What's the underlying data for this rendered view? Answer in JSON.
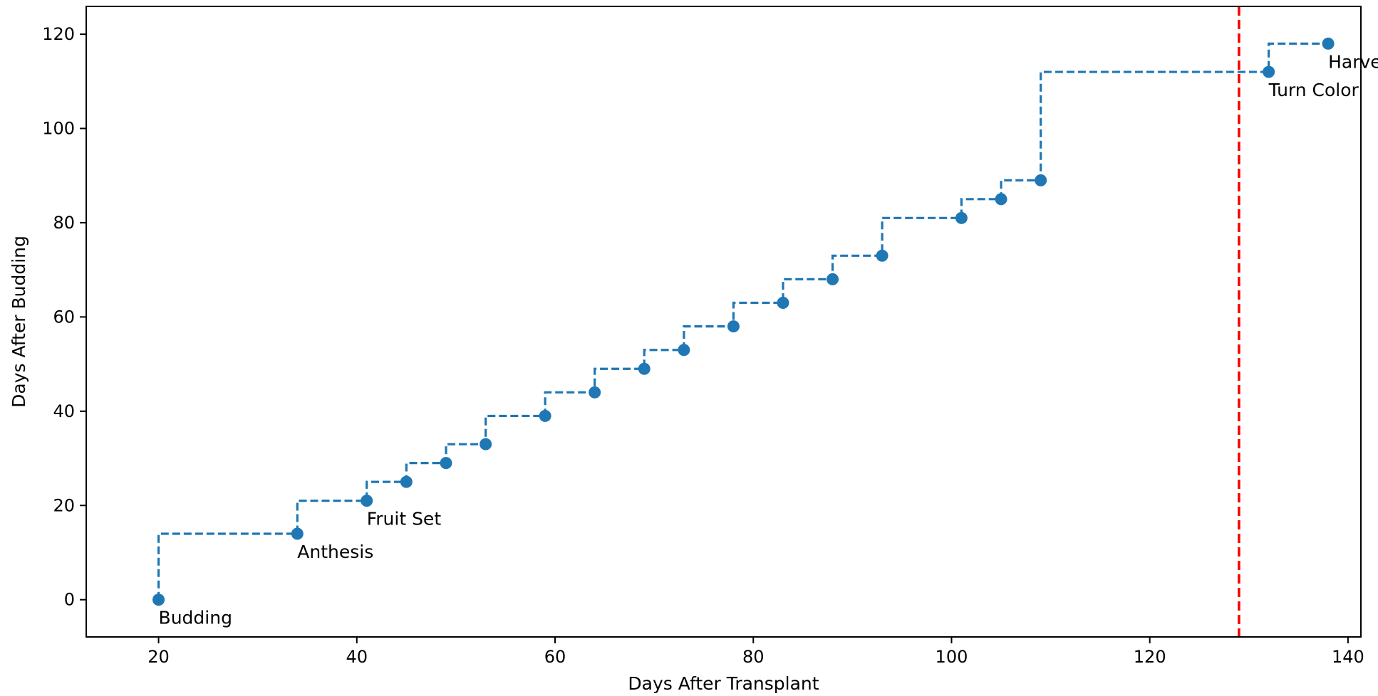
{
  "chart_data": {
    "type": "line",
    "title": "",
    "xlabel": "Days After Transplant",
    "ylabel": "Days After Budding",
    "xlim": [
      12.7,
      141.3
    ],
    "ylim": [
      -7.9,
      125.9
    ],
    "xticks": [
      20,
      40,
      60,
      80,
      100,
      120,
      140
    ],
    "yticks": [
      0,
      20,
      40,
      60,
      80,
      100,
      120
    ],
    "grid": false,
    "legend": null,
    "series": [
      {
        "style": "dashed step (post) with circle markers",
        "color": "#1f77b4",
        "x": [
          20,
          34,
          41,
          45,
          49,
          53,
          59,
          64,
          69,
          73,
          78,
          83,
          88,
          93,
          101,
          105,
          109,
          132,
          138
        ],
        "y": [
          0,
          14,
          21,
          25,
          29,
          33,
          39,
          44,
          49,
          53,
          58,
          63,
          68,
          73,
          81,
          85,
          89,
          112,
          118
        ]
      }
    ],
    "reference_lines": [
      {
        "orientation": "vertical",
        "x": 129,
        "style": "dashed",
        "color": "#ff0000"
      }
    ],
    "annotations": [
      {
        "text": "Budding",
        "x": 20,
        "y": 0
      },
      {
        "text": "Anthesis",
        "x": 34,
        "y": 14
      },
      {
        "text": "Fruit Set",
        "x": 41,
        "y": 21
      },
      {
        "text": "Turn Color",
        "x": 132,
        "y": 112
      },
      {
        "text": "Harvest",
        "x": 138,
        "y": 118
      }
    ]
  }
}
